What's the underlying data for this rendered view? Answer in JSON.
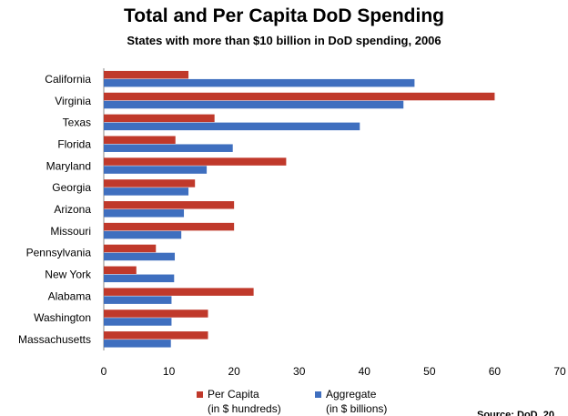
{
  "chart_data": {
    "type": "bar",
    "orientation": "horizontal",
    "title": "Total and Per Capita DoD Spending",
    "subtitle": "States with more than $10 billion in DoD spending, 2006",
    "categories": [
      "California",
      "Virginia",
      "Texas",
      "Florida",
      "Maryland",
      "Georgia",
      "Arizona",
      "Missouri",
      "Pennsylvania",
      "New York",
      "Alabama",
      "Washington",
      "Massachusetts"
    ],
    "series": [
      {
        "name": "Per Capita",
        "name_line2": "(in $ hundreds)",
        "color": "#c0392b",
        "values": [
          13,
          60,
          17,
          11,
          28,
          14,
          20,
          20,
          8,
          5,
          23,
          16,
          16
        ]
      },
      {
        "name": "Aggregate",
        "name_line2": "(in $ billions)",
        "color": "#3f6fbf",
        "values": [
          47.7,
          46,
          39.3,
          19.8,
          15.8,
          13,
          12.3,
          11.9,
          10.9,
          10.8,
          10.4,
          10.4,
          10.3
        ]
      }
    ],
    "xlim": [
      0,
      70
    ],
    "xticks": [
      0,
      10,
      20,
      30,
      40,
      50,
      60,
      70
    ],
    "legend_position": "bottom",
    "source": "Source: DoD, 20"
  }
}
